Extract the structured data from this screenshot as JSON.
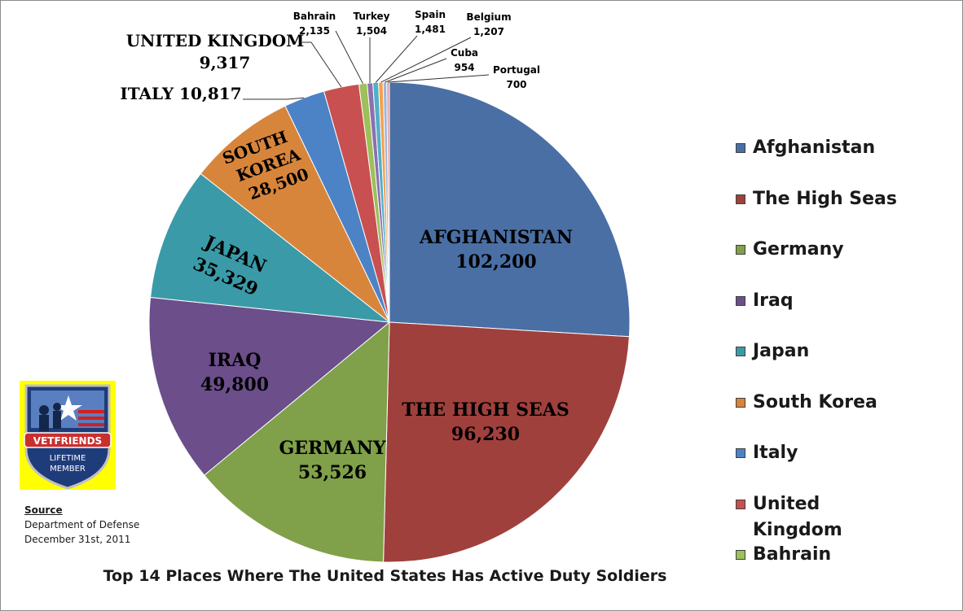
{
  "chart_data": {
    "type": "pie",
    "title": "Top 14 Places Where The United States Has Active Duty Soldiers",
    "slices": [
      {
        "name": "Afghanistan",
        "value": 102200,
        "color": "#4A6FA5",
        "label": "AFGHANISTAN",
        "value_text": "102,200"
      },
      {
        "name": "The High Seas",
        "value": 96230,
        "color": "#A0403C",
        "label": "THE HIGH SEAS",
        "value_text": "96,230"
      },
      {
        "name": "Germany",
        "value": 53526,
        "color": "#80A04A",
        "label": "GERMANY",
        "value_text": "53,526"
      },
      {
        "name": "Iraq",
        "value": 49800,
        "color": "#6B4E8A",
        "label": "IRAQ",
        "value_text": "49,800"
      },
      {
        "name": "Japan",
        "value": 35329,
        "color": "#3A9AA8",
        "label": "JAPAN",
        "value_text": "35,329"
      },
      {
        "name": "South Korea",
        "value": 28500,
        "color": "#D8853C",
        "label": "SOUTH KOREA",
        "value_text": "28,500"
      },
      {
        "name": "Italy",
        "value": 10817,
        "color": "#4C82C6",
        "label": "ITALY",
        "value_text": "10,817"
      },
      {
        "name": "United Kingdom",
        "value": 9317,
        "color": "#C85050",
        "label": "UNITED KINGDOM",
        "value_text": "9,317"
      },
      {
        "name": "Bahrain",
        "value": 2135,
        "color": "#9CC05A",
        "label": "Bahrain",
        "value_text": "2,135"
      },
      {
        "name": "Turkey",
        "value": 1504,
        "color": "#8C70B0",
        "label": "Turkey",
        "value_text": "1,504"
      },
      {
        "name": "Spain",
        "value": 1481,
        "color": "#4FB0C6",
        "label": "Spain",
        "value_text": "1,481"
      },
      {
        "name": "Belgium",
        "value": 1207,
        "color": "#F5A050",
        "label": "Belgium",
        "value_text": "1,207"
      },
      {
        "name": "Cuba",
        "value": 954,
        "color": "#9EB4DA",
        "label": "Cuba",
        "value_text": "954"
      },
      {
        "name": "Portugal",
        "value": 700,
        "color": "#E0A0A0",
        "label": "Portugal",
        "value_text": "700"
      }
    ],
    "legend": [
      "Afghanistan",
      "The High Seas",
      "Germany",
      "Iraq",
      "Japan",
      "South Korea",
      "Italy",
      "United Kingdom",
      "Bahrain"
    ],
    "legend_position": "right"
  },
  "source": {
    "heading": "Source",
    "line1": "Department of Defense",
    "line2": "December 31st, 2011"
  },
  "badge": {
    "line1": "VETFRIENDS",
    "line2": "LIFETIME",
    "line3": "MEMBER"
  }
}
